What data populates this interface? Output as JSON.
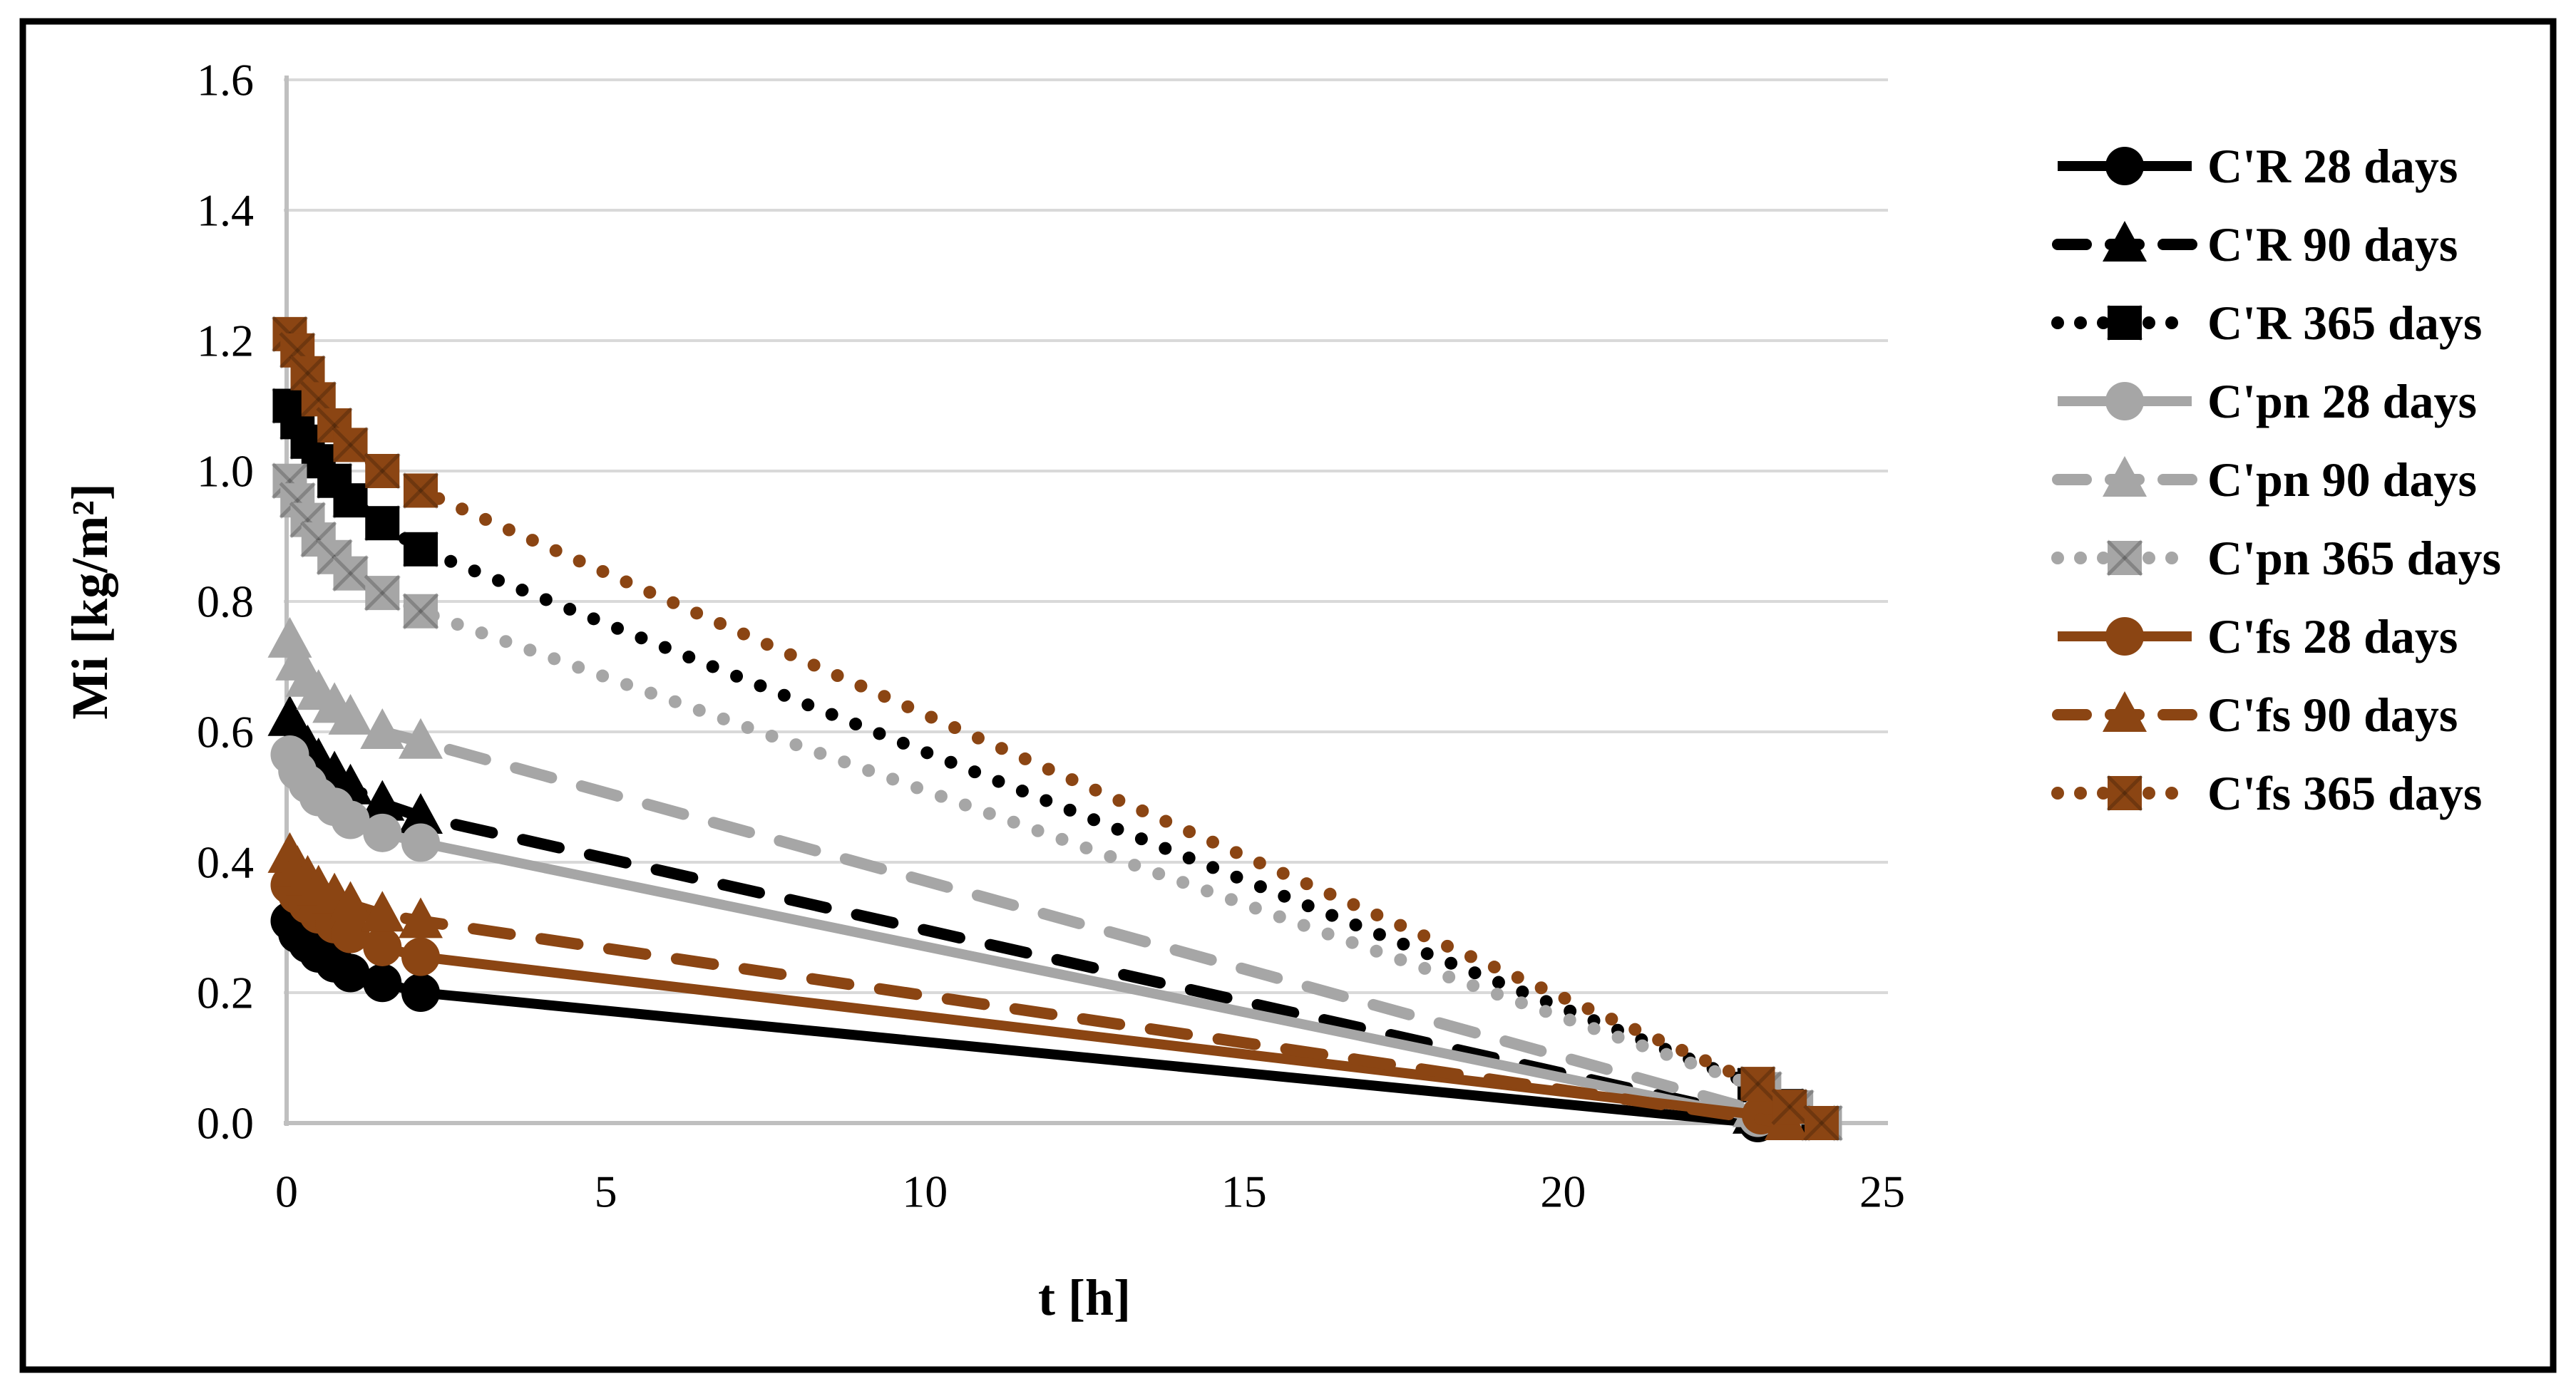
{
  "figure": {
    "border_color": "#000000",
    "background": "#FFFFFF"
  },
  "chart_data": {
    "type": "line",
    "title": "",
    "xlabel": "t [h]",
    "ylabel": "Mi [kg/m²]",
    "xlim": [
      0,
      25
    ],
    "ylim": [
      0,
      1.6
    ],
    "x_ticks": [
      0,
      5,
      10,
      15,
      20,
      25
    ],
    "x_tick_labels": [
      "0",
      "5",
      "10",
      "15",
      "20",
      "25"
    ],
    "y_ticks": [
      0,
      0.2,
      0.4,
      0.6,
      0.8,
      1.0,
      1.2,
      1.4,
      1.6
    ],
    "y_tick_labels": [
      "0.0",
      "0.2",
      "0.4",
      "0.6",
      "0.8",
      "1.0",
      "1.2",
      "1.4",
      "1.6"
    ],
    "grid": "horizontal",
    "legend_position": "right",
    "style": {
      "gridline_color": "#D9D9D9",
      "axis_color": "#BFBFBF",
      "black": "#000000",
      "gray": "#A6A6A6",
      "brown": "#8B4513"
    },
    "series": [
      {
        "name": "C'R 28 days",
        "color": "#000000",
        "line": "solid",
        "marker": "circle",
        "x": [
          0.05,
          0.17,
          0.33,
          0.5,
          0.75,
          1.0,
          1.5,
          2.1,
          23.05
        ],
        "y": [
          0.31,
          0.29,
          0.275,
          0.26,
          0.245,
          0.23,
          0.215,
          0.2,
          0.0
        ]
      },
      {
        "name": "C'R 90 days",
        "color": "#000000",
        "line": "dashed",
        "marker": "triangle",
        "x": [
          0.05,
          0.17,
          0.33,
          0.5,
          0.75,
          1.0,
          1.5,
          2.1,
          23.0
        ],
        "y": [
          0.62,
          0.595,
          0.575,
          0.555,
          0.535,
          0.515,
          0.49,
          0.47,
          0.01
        ]
      },
      {
        "name": "C'R 365 days",
        "color": "#000000",
        "line": "dotted",
        "marker": "square",
        "x": [
          0.05,
          0.17,
          0.33,
          0.5,
          0.75,
          1.0,
          1.5,
          2.1,
          23.0,
          23.5,
          24.0
        ],
        "y": [
          1.1,
          1.075,
          1.045,
          1.015,
          0.985,
          0.955,
          0.92,
          0.88,
          0.058,
          0.026,
          0.0
        ]
      },
      {
        "name": "C'pn 28 days",
        "color": "#A6A6A6",
        "line": "solid",
        "marker": "circle",
        "x": [
          0.05,
          0.17,
          0.33,
          0.5,
          0.75,
          1.0,
          1.5,
          2.1,
          23.05
        ],
        "y": [
          0.565,
          0.54,
          0.52,
          0.5,
          0.485,
          0.465,
          0.445,
          0.43,
          0.008
        ]
      },
      {
        "name": "C'pn 90 days",
        "color": "#A6A6A6",
        "line": "dashed",
        "marker": "triangle",
        "x": [
          0.05,
          0.17,
          0.33,
          0.5,
          0.75,
          1.0,
          1.5,
          2.1,
          23.0
        ],
        "y": [
          0.74,
          0.705,
          0.68,
          0.66,
          0.64,
          0.622,
          0.6,
          0.585,
          0.02
        ]
      },
      {
        "name": "C'pn 365 days",
        "color": "#A6A6A6",
        "line": "dotted",
        "marker": "square",
        "x": [
          0.05,
          0.17,
          0.33,
          0.5,
          0.75,
          1.0,
          1.5,
          2.1,
          23.15,
          23.65,
          24.1
        ],
        "y": [
          0.985,
          0.955,
          0.925,
          0.895,
          0.868,
          0.843,
          0.813,
          0.785,
          0.052,
          0.024,
          0.0
        ]
      },
      {
        "name": "C'fs 28 days",
        "color": "#8B4513",
        "line": "solid",
        "marker": "circle",
        "x": [
          0.05,
          0.17,
          0.33,
          0.5,
          0.75,
          1.0,
          1.5,
          2.1,
          23.1
        ],
        "y": [
          0.365,
          0.35,
          0.335,
          0.32,
          0.305,
          0.29,
          0.27,
          0.255,
          0.012
        ]
      },
      {
        "name": "C'fs 90 days",
        "color": "#8B4513",
        "line": "dashed",
        "marker": "triangle",
        "x": [
          0.05,
          0.17,
          0.33,
          0.5,
          0.75,
          1.0,
          1.5,
          2.1,
          23.5
        ],
        "y": [
          0.41,
          0.39,
          0.375,
          0.36,
          0.348,
          0.335,
          0.32,
          0.31,
          0.0
        ]
      },
      {
        "name": "C'fs 365 days",
        "color": "#8B4513",
        "line": "dotted",
        "marker": "square",
        "x": [
          0.05,
          0.17,
          0.33,
          0.5,
          0.75,
          1.0,
          1.5,
          2.1,
          23.05,
          23.55,
          24.05
        ],
        "y": [
          1.21,
          1.185,
          1.15,
          1.11,
          1.07,
          1.04,
          1.0,
          0.97,
          0.06,
          0.025,
          0.0
        ]
      }
    ]
  }
}
